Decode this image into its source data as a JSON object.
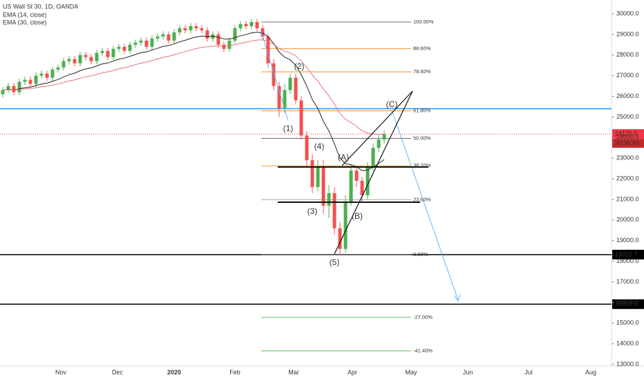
{
  "chart_data": {
    "type": "candlestick",
    "title": "US Wall St 30, 1D, OANDA",
    "indicators": [
      {
        "name": "EMA (14, close)",
        "period": 14,
        "color": "#222222"
      },
      {
        "name": "EMA (30, close)",
        "period": 30,
        "color": "#e57373"
      }
    ],
    "ylim": [
      13000,
      30000
    ],
    "yticks": [
      {
        "value": 13000,
        "label": "13000.0"
      },
      {
        "value": 14000,
        "label": "14000.0"
      },
      {
        "value": 15000,
        "label": "15000.0"
      },
      {
        "value": 16000,
        "label": "16000.0"
      },
      {
        "value": 17000,
        "label": "17000.0"
      },
      {
        "value": 18000,
        "label": "18000.0"
      },
      {
        "value": 19000,
        "label": "19000.0"
      },
      {
        "value": 20000,
        "label": "20000.0"
      },
      {
        "value": 21000,
        "label": "21000.0"
      },
      {
        "value": 22000,
        "label": "22000.0"
      },
      {
        "value": 23000,
        "label": "23000.0"
      },
      {
        "value": 24000,
        "label": "24000.0"
      },
      {
        "value": 25000,
        "label": "25000.0"
      },
      {
        "value": 26000,
        "label": "26000.0"
      },
      {
        "value": 27000,
        "label": "27000.0"
      },
      {
        "value": 28000,
        "label": "28000.0"
      },
      {
        "value": 29000,
        "label": "29000.0"
      },
      {
        "value": 30000,
        "label": "30000.0"
      }
    ],
    "xticks": [
      "Nov",
      "Dec",
      "2020",
      "Feb",
      "Mar",
      "Apr",
      "May",
      "Jun",
      "Jul",
      "Aug"
    ],
    "up_color": "#4caf50",
    "down_color": "#ef5350",
    "open": [
      26100,
      26300,
      26500,
      26200,
      26700,
      26800,
      26600,
      27000,
      27100,
      26900,
      27300,
      27400,
      27700,
      27800,
      27600,
      28000,
      27900,
      27700,
      28100,
      28200,
      27900,
      28300,
      28400,
      28200,
      28500,
      28600,
      28700,
      28400,
      28800,
      28900,
      29000,
      28700,
      29100,
      29300,
      29200,
      29400,
      29300,
      29200,
      28800,
      29000,
      28500,
      28300,
      28700,
      29300,
      29500,
      29400,
      29600,
      29300,
      28900,
      27600,
      26500,
      25400,
      26300,
      26900,
      25800,
      24100,
      22900,
      21600,
      22600,
      20700,
      21300,
      19600,
      18600,
      20900,
      22400,
      21900,
      21200,
      22600,
      23500,
      23900
    ],
    "high": [
      26450,
      26650,
      26650,
      26850,
      26950,
      26950,
      27150,
      27250,
      27250,
      27450,
      27550,
      27850,
      27950,
      27950,
      28150,
      28150,
      28050,
      28250,
      28350,
      28350,
      28450,
      28550,
      28550,
      28650,
      28750,
      28850,
      28850,
      28950,
      29050,
      29150,
      29150,
      29250,
      29450,
      29450,
      29550,
      29550,
      29450,
      29350,
      29150,
      29150,
      28650,
      28850,
      29450,
      29650,
      29650,
      29750,
      29750,
      29450,
      29050,
      27800,
      26700,
      26600,
      27100,
      27100,
      26000,
      24300,
      23200,
      22900,
      22900,
      21700,
      21600,
      19900,
      21200,
      22700,
      22600,
      22100,
      22800,
      23700,
      24100,
      24350
    ],
    "low": [
      25950,
      26150,
      26050,
      26050,
      26550,
      26450,
      26450,
      26850,
      26750,
      26750,
      27150,
      27250,
      27550,
      27450,
      27450,
      27750,
      27550,
      27550,
      27950,
      27750,
      27750,
      28150,
      28050,
      28050,
      28350,
      28450,
      28250,
      28250,
      28650,
      28750,
      28550,
      28550,
      28950,
      29050,
      29050,
      29150,
      29050,
      28650,
      28650,
      28350,
      28150,
      28150,
      28550,
      29150,
      29250,
      29250,
      29150,
      28750,
      27400,
      26300,
      25000,
      25200,
      26100,
      25600,
      23900,
      22600,
      21300,
      21400,
      20300,
      20100,
      19300,
      18300,
      18400,
      20700,
      21600,
      20900,
      21000,
      22400,
      23300,
      23700
    ],
    "close": [
      26300,
      26500,
      26200,
      26700,
      26800,
      26600,
      27000,
      27100,
      26900,
      27300,
      27400,
      27700,
      27800,
      27600,
      28000,
      27900,
      27700,
      28100,
      28200,
      27900,
      28300,
      28400,
      28200,
      28500,
      28600,
      28700,
      28400,
      28800,
      28900,
      29000,
      28700,
      29100,
      29300,
      29200,
      29400,
      29300,
      29200,
      28800,
      29000,
      28500,
      28300,
      28700,
      29300,
      29500,
      29400,
      29600,
      29300,
      28900,
      27600,
      26500,
      25400,
      26300,
      26900,
      25800,
      24100,
      22900,
      21600,
      22600,
      20700,
      21300,
      19600,
      18600,
      20900,
      22400,
      21900,
      21200,
      22600,
      23500,
      23900,
      24170
    ],
    "fib_levels": [
      {
        "value": 29600,
        "label": "100.00%",
        "color": "#555555"
      },
      {
        "value": 28314.4,
        "label": "88.60%",
        "color": "#f57c00"
      },
      {
        "value": 27186.7,
        "label": "78.60%",
        "color": "#f57c00"
      },
      {
        "value": 25292.0,
        "label": "61.80%",
        "color": "#f57c00"
      },
      {
        "value": 23961.4,
        "label": "50.00%",
        "color": "#555555"
      },
      {
        "value": 22630.5,
        "label": "38.20%",
        "color": "#f57c00"
      },
      {
        "value": 20984.1,
        "label": "23.60%",
        "color": "#9e9e9e"
      },
      {
        "value": 18322.7,
        "label": "0.00%",
        "color": "#555555"
      },
      {
        "value": 15277.8,
        "label": "-27.00%",
        "color": "#4caf50"
      },
      {
        "value": 13653.9,
        "label": "-41.40%",
        "color": "#4caf50"
      }
    ],
    "horizontal_lines": [
      {
        "value": 25400,
        "color": "#2196f3"
      },
      {
        "value": 18322.7,
        "color": "#000000"
      },
      {
        "value": 15919.5,
        "color": "#000000"
      }
    ],
    "price_tags": [
      {
        "value": 24170.6,
        "label": "24170.6",
        "color": "#f23645"
      },
      {
        "value": 18322.7,
        "label": "18322.7",
        "color": "#000000"
      },
      {
        "value": 15919.5,
        "label": "15919.5",
        "color": "#000000"
      }
    ],
    "countdown": "20:36:45",
    "wave_labels": [
      "(1)",
      "(2)",
      "(3)",
      "(4)",
      "(5)",
      "(A)",
      "(B)",
      "(C)"
    ]
  }
}
